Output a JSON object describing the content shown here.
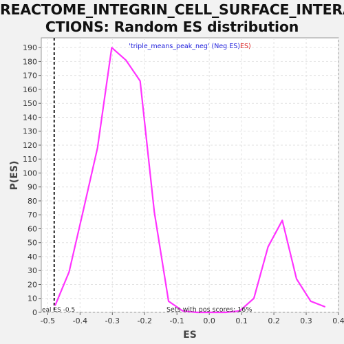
{
  "chart_title": {
    "line1": "REACTOME_INTEGRIN_CELL_SURFACE_INTERA",
    "line2": "CTIONS: Random ES distribution"
  },
  "legend": {
    "label_blue": "'triple_means_peak_neg' (Neg ES)",
    "label_red": "ES)"
  },
  "annotations": {
    "real_es": "eal ES -0.5",
    "sets_pos": "Sets with pos scores: 16%"
  },
  "colors": {
    "curve": "#ff33ff",
    "legend_blue": "#2222dd",
    "legend_red": "#dd2222",
    "background": "#f2f2f2",
    "plot_bg": "#ffffff",
    "grid": "#e2e2e2"
  },
  "chart_data": {
    "type": "line",
    "xlabel": "ES",
    "ylabel": "P(ES)",
    "xlim": [
      -0.52,
      0.4
    ],
    "ylim": [
      0,
      197
    ],
    "x_ticks": [
      -0.5,
      -0.4,
      -0.3,
      -0.2,
      -0.1,
      0.0,
      0.1,
      0.2,
      0.3,
      0.4
    ],
    "x_tick_labels": [
      "-0.5",
      "-0.4",
      "-0.3",
      "-0.2",
      "-0.1",
      "0.0",
      "0.1",
      "0.2",
      "0.3",
      "0.4"
    ],
    "y_ticks": [
      0,
      10,
      20,
      30,
      40,
      50,
      60,
      70,
      80,
      90,
      100,
      110,
      120,
      130,
      140,
      150,
      160,
      170,
      180,
      190
    ],
    "y_tick_labels": [
      "0",
      "10",
      "20",
      "30",
      "40",
      "50",
      "60",
      "70",
      "80",
      "90",
      "100",
      "110",
      "120",
      "130",
      "140",
      "150",
      "160",
      "170",
      "180",
      "190"
    ],
    "grid": true,
    "real_es_x": -0.48,
    "series": [
      {
        "x": [
          -0.477,
          -0.434,
          -0.39,
          -0.346,
          -0.302,
          -0.258,
          -0.214,
          -0.17,
          -0.126,
          -0.082,
          -0.038,
          0.006,
          0.05,
          0.094,
          0.138,
          0.182,
          0.226,
          0.27,
          0.314,
          0.358
        ],
        "values": [
          5,
          29,
          73,
          118,
          190,
          181,
          166,
          72,
          8,
          1,
          0,
          0,
          0,
          1,
          10,
          47,
          66,
          24,
          8,
          4
        ]
      }
    ]
  }
}
